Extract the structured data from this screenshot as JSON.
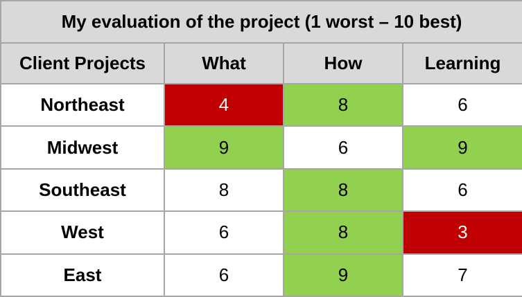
{
  "table": {
    "title": "My evaluation of the project (1 worst – 10 best)",
    "columns": [
      "Client Projects",
      "What",
      "How",
      "Learning"
    ],
    "rows": [
      {
        "label": "Northeast",
        "values": [
          4,
          8,
          6
        ],
        "fills": [
          "#c00000",
          "#92d050",
          "#ffffff"
        ]
      },
      {
        "label": "Midwest",
        "values": [
          9,
          6,
          9
        ],
        "fills": [
          "#92d050",
          "#ffffff",
          "#92d050"
        ]
      },
      {
        "label": "Southeast",
        "values": [
          8,
          8,
          6
        ],
        "fills": [
          "#ffffff",
          "#92d050",
          "#ffffff"
        ]
      },
      {
        "label": "West",
        "values": [
          6,
          8,
          3
        ],
        "fills": [
          "#ffffff",
          "#92d050",
          "#c00000"
        ]
      },
      {
        "label": "East",
        "values": [
          6,
          9,
          7
        ],
        "fills": [
          "#ffffff",
          "#92d050",
          "#ffffff"
        ]
      }
    ]
  }
}
